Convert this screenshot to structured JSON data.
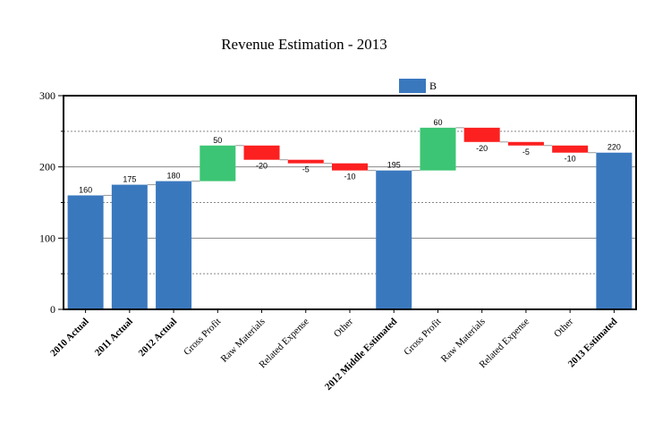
{
  "chart_data": {
    "type": "bar",
    "subtype": "waterfall",
    "title": "Revenue Estimation - 2013",
    "categories": [
      "2010 Actual",
      "2011 Actual",
      "2012 Actual",
      "Gross Profit",
      "Raw Materials",
      "Related Expense",
      "Other",
      "2012 Middle Estimated",
      "Gross Profit",
      "Raw Materials",
      "Related Expense",
      "Other",
      "2013 Estimated"
    ],
    "category_bold": [
      true,
      true,
      true,
      false,
      false,
      false,
      false,
      true,
      false,
      false,
      false,
      false,
      true
    ],
    "values": [
      160,
      175,
      180,
      50,
      -20,
      -5,
      -10,
      195,
      60,
      -20,
      -5,
      -10,
      220
    ],
    "bar_kind": [
      "total",
      "total",
      "total",
      "delta",
      "delta",
      "delta",
      "delta",
      "total",
      "delta",
      "delta",
      "delta",
      "delta",
      "total"
    ],
    "series": [
      {
        "name": "B",
        "values": [
          160,
          175,
          180,
          50,
          -20,
          -5,
          -10,
          195,
          60,
          -20,
          -5,
          -10,
          220
        ]
      }
    ],
    "data_labels": [
      "160",
      "175",
      "180",
      "50",
      "-20",
      "-5",
      "-10",
      "195",
      "60",
      "-20",
      "-5",
      "-10",
      "220"
    ],
    "y_ticks": [
      "0",
      "100",
      "200",
      "300"
    ],
    "ylim": [
      0,
      300
    ],
    "xlabel": "",
    "ylabel": "",
    "legend": "top",
    "grid": true,
    "colors": {
      "total": "#3a78be",
      "increase": "#3cc574",
      "decrease": "#fc2020",
      "grid_major": "#888888",
      "grid_minor": "#888888"
    }
  }
}
